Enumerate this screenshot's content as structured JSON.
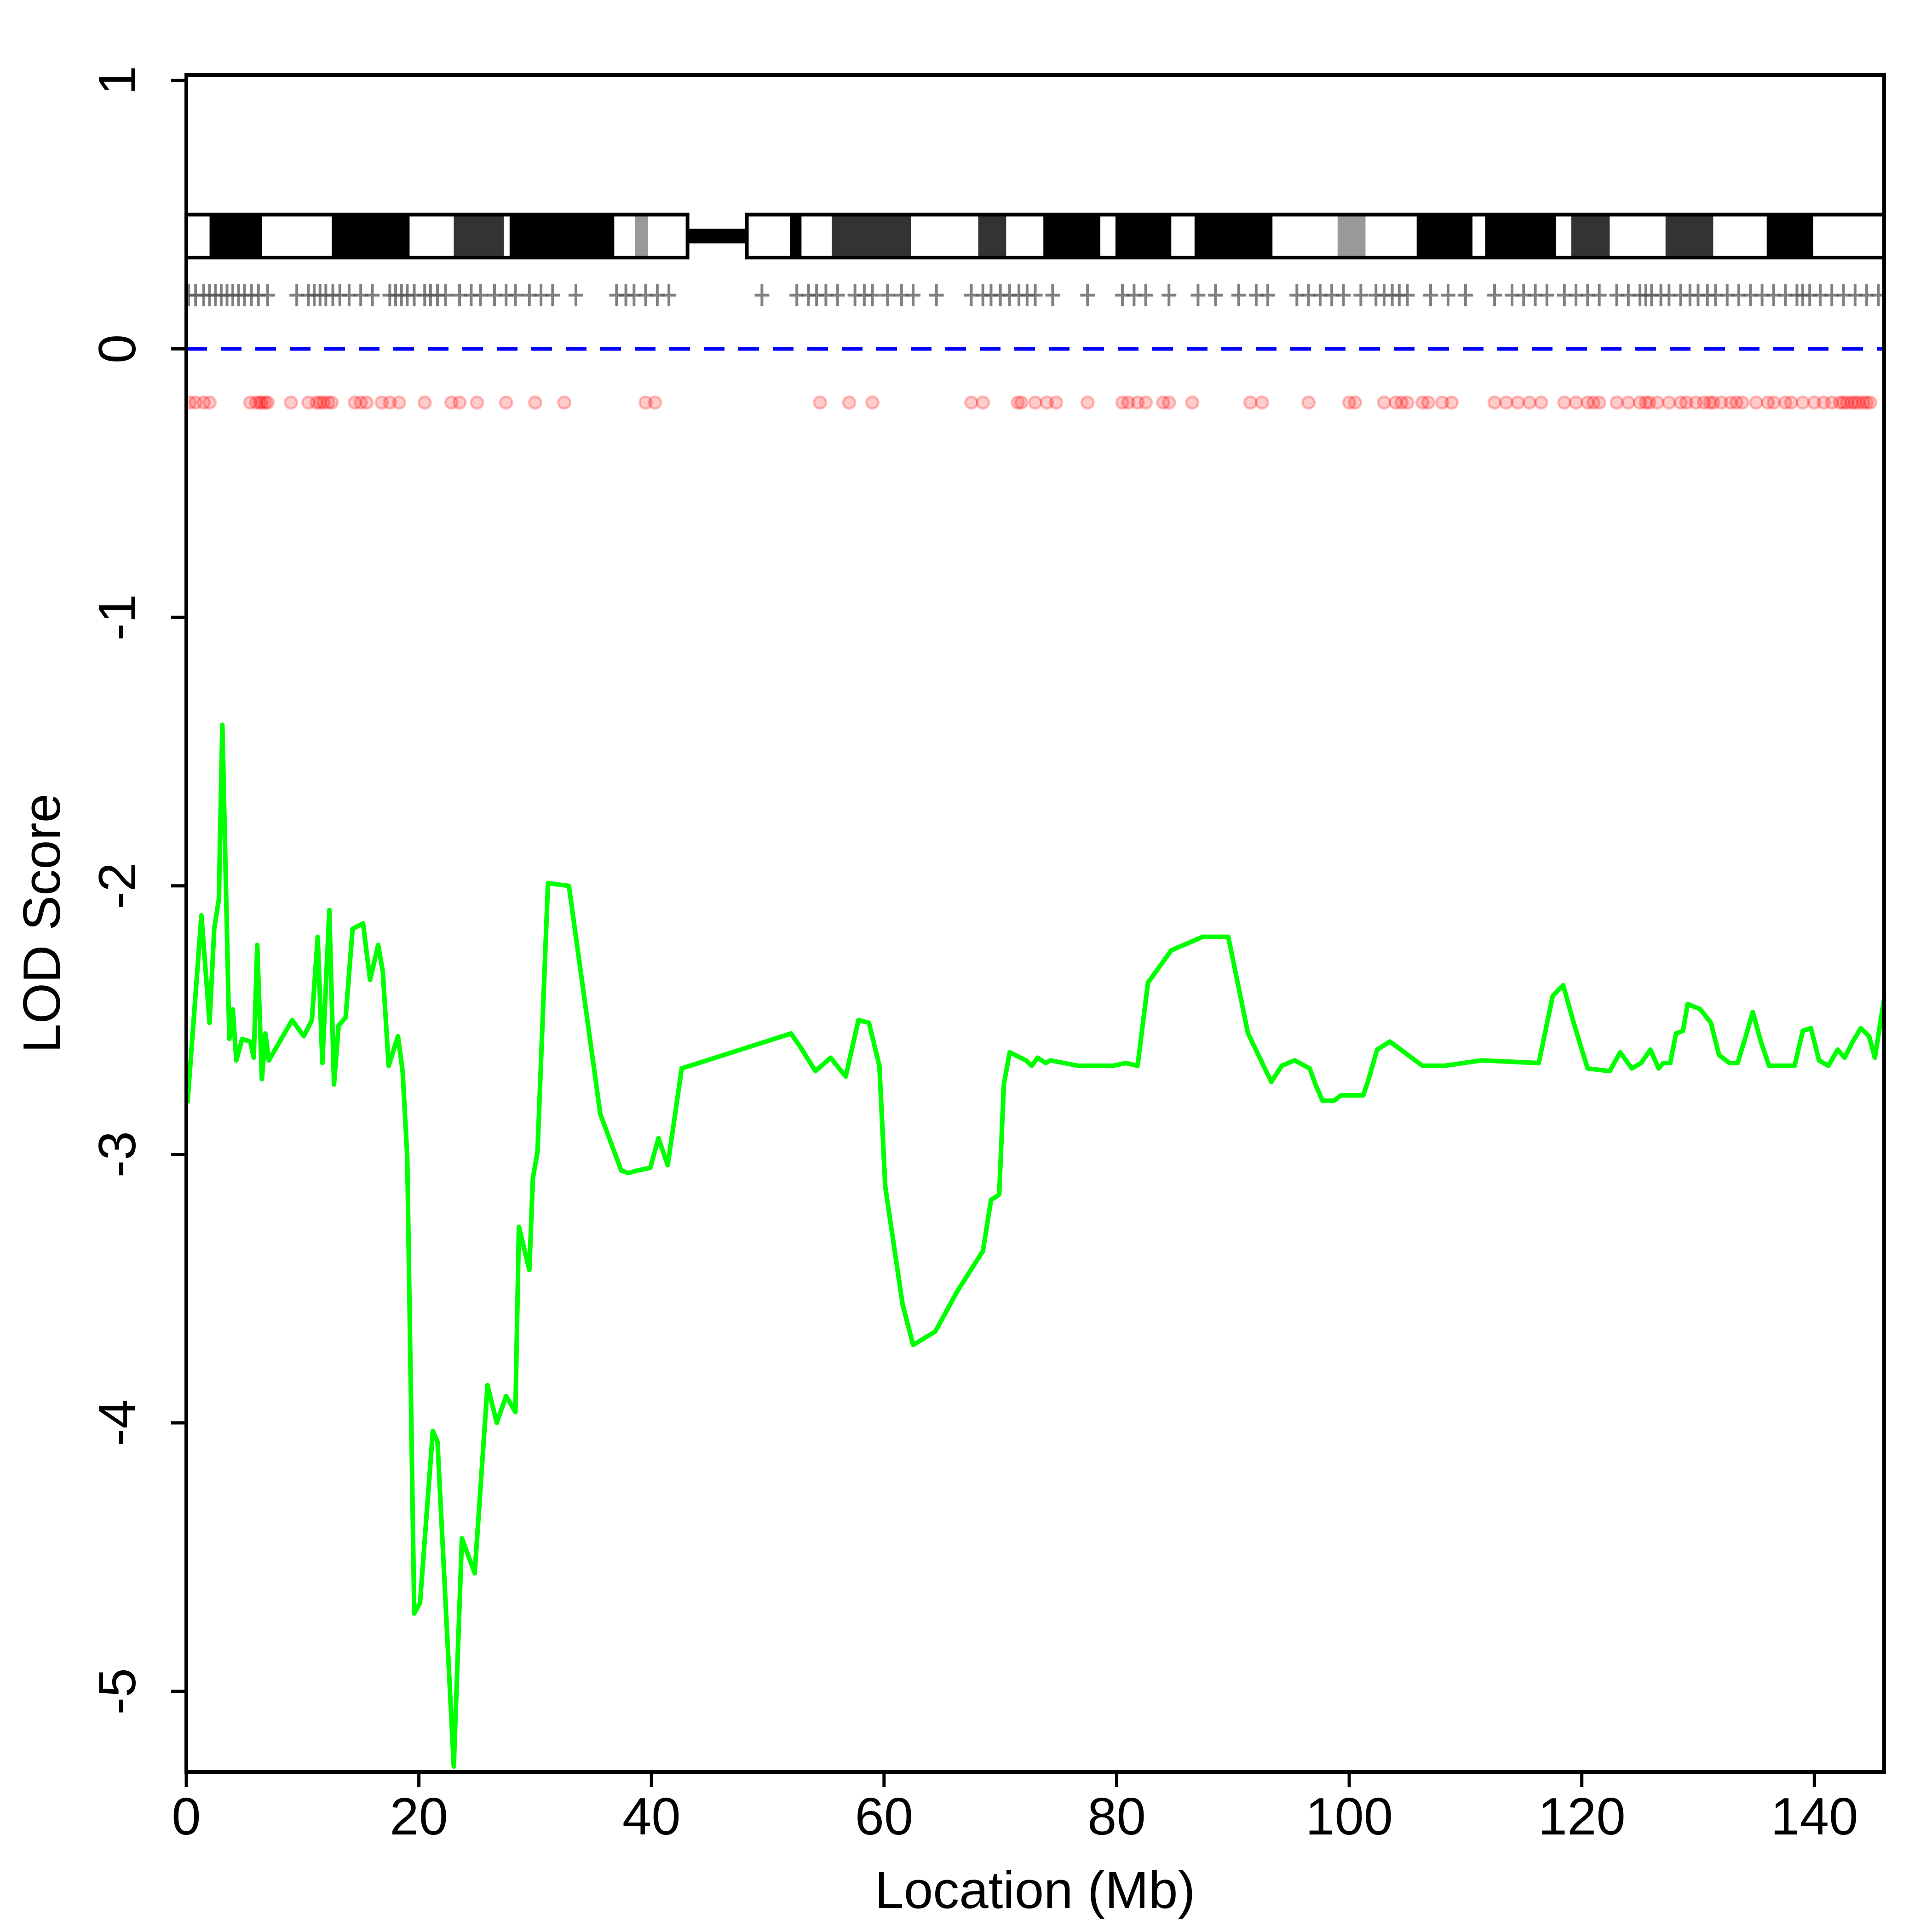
{
  "chart_data": {
    "type": "line",
    "x_label": "Location (Mb)",
    "y_label": "LOD Score",
    "xlim": [
      0,
      146
    ],
    "ylim": [
      -5.3,
      1.02
    ],
    "xticks": [
      0,
      20,
      40,
      60,
      80,
      100,
      120,
      140
    ],
    "yticks": [
      1,
      0,
      -1,
      -2,
      -3,
      -4,
      -5
    ],
    "color": "#00ff00",
    "x": [
      0.1,
      1.3,
      2.0,
      2.4,
      2.8,
      3.1,
      3.7,
      4.0,
      4.3,
      4.8,
      5.5,
      5.8,
      6.1,
      6.5,
      6.8,
      7.1,
      9.1,
      10.1,
      10.8,
      11.3,
      11.7,
      12.3,
      12.7,
      13.1,
      13.7,
      14.3,
      15.2,
      15.8,
      16.5,
      16.9,
      17.4,
      18.2,
      18.6,
      19.0,
      19.6,
      20.1,
      21.2,
      21.6,
      23.0,
      23.7,
      24.8,
      25.9,
      26.7,
      27.5,
      28.3,
      28.6,
      29.5,
      29.8,
      30.2,
      31.1,
      32.9,
      35.6,
      37.4,
      38.0,
      38.8,
      39.9,
      40.6,
      41.4,
      42.6,
      52.0,
      52.8,
      54.1,
      55.4,
      56.7,
      57.8,
      58.7,
      59.6,
      60.1,
      61.6,
      62.5,
      64.4,
      66.3,
      68.5,
      69.2,
      69.9,
      70.3,
      70.8,
      72.2,
      72.7,
      73.2,
      73.9,
      74.3,
      76.7,
      79.7,
      80.8,
      81.8,
      82.7,
      84.7,
      87.4,
      89.6,
      91.3,
      93.3,
      94.2,
      95.3,
      96.6,
      97.1,
      97.7,
      98.7,
      99.3,
      101.2,
      101.6,
      102.4,
      103.5,
      106.3,
      108.2,
      111.4,
      116.3,
      117.5,
      118.4,
      119.3,
      120.5,
      122.4,
      123.3,
      124.3,
      125.1,
      125.9,
      126.6,
      127.0,
      127.6,
      128.1,
      128.7,
      129.1,
      130.2,
      131.1,
      131.8,
      132.7,
      133.4,
      134.1,
      134.7,
      135.4,
      136.1,
      138.3,
      139.0,
      139.7,
      140.4,
      141.2,
      142.0,
      142.6,
      143.3,
      144.0,
      144.7,
      145.2,
      146.0
    ],
    "values": [
      -2.81,
      -2.11,
      -2.51,
      -2.16,
      -2.05,
      -1.4,
      -2.57,
      -2.46,
      -2.65,
      -2.57,
      -2.58,
      -2.64,
      -2.22,
      -2.72,
      -2.55,
      -2.65,
      -2.5,
      -2.56,
      -2.5,
      -2.19,
      -2.66,
      -2.09,
      -2.74,
      -2.52,
      -2.49,
      -2.16,
      -2.14,
      -2.35,
      -2.22,
      -2.32,
      -2.67,
      -2.56,
      -2.69,
      -3.01,
      -4.71,
      -4.67,
      -4.03,
      -4.07,
      -5.28,
      -4.43,
      -4.56,
      -3.86,
      -4.0,
      -3.9,
      -3.96,
      -3.27,
      -3.43,
      -3.09,
      -2.99,
      -1.99,
      -2.0,
      -2.85,
      -3.06,
      -3.07,
      -3.06,
      -3.05,
      -2.94,
      -3.04,
      -2.68,
      -2.55,
      -2.6,
      -2.69,
      -2.64,
      -2.71,
      -2.5,
      -2.51,
      -2.67,
      -3.12,
      -3.56,
      -3.71,
      -3.66,
      -3.51,
      -3.36,
      -3.17,
      -3.15,
      -2.74,
      -2.62,
      -2.65,
      -2.67,
      -2.64,
      -2.66,
      -2.65,
      -2.67,
      -2.67,
      -2.66,
      -2.67,
      -2.36,
      -2.24,
      -2.19,
      -2.19,
      -2.55,
      -2.73,
      -2.67,
      -2.65,
      -2.68,
      -2.74,
      -2.8,
      -2.8,
      -2.78,
      -2.78,
      -2.73,
      -2.61,
      -2.58,
      -2.67,
      -2.67,
      -2.65,
      -2.66,
      -2.41,
      -2.37,
      -2.51,
      -2.68,
      -2.69,
      -2.62,
      -2.68,
      -2.66,
      -2.61,
      -2.68,
      -2.66,
      -2.66,
      -2.55,
      -2.54,
      -2.44,
      -2.46,
      -2.51,
      -2.63,
      -2.66,
      -2.66,
      -2.56,
      -2.47,
      -2.58,
      -2.67,
      -2.67,
      -2.54,
      -2.53,
      -2.65,
      -2.67,
      -2.61,
      -2.64,
      -2.58,
      -2.53,
      -2.56,
      -2.64,
      -2.42
    ],
    "hline": {
      "value": 0,
      "color": "#0000ff"
    },
    "ideogram": {
      "top": 0.5,
      "bottom": 0.34,
      "arms": [
        [
          0,
          43.1
        ],
        [
          48.2,
          146
        ]
      ],
      "bands": [
        {
          "start": 2.0,
          "end": 6.5,
          "color": "#000000"
        },
        {
          "start": 12.5,
          "end": 19.2,
          "color": "#000000"
        },
        {
          "start": 23.0,
          "end": 27.3,
          "color": "#333333"
        },
        {
          "start": 27.8,
          "end": 36.8,
          "color": "#000000"
        },
        {
          "start": 38.6,
          "end": 39.7,
          "color": "#999999"
        },
        {
          "start": 51.9,
          "end": 52.9,
          "color": "#000000"
        },
        {
          "start": 55.5,
          "end": 62.3,
          "color": "#333333"
        },
        {
          "start": 68.1,
          "end": 70.5,
          "color": "#333333"
        },
        {
          "start": 73.7,
          "end": 78.6,
          "color": "#000000"
        },
        {
          "start": 79.9,
          "end": 84.7,
          "color": "#000000"
        },
        {
          "start": 86.7,
          "end": 93.4,
          "color": "#000000"
        },
        {
          "start": 99.0,
          "end": 101.4,
          "color": "#999999"
        },
        {
          "start": 105.8,
          "end": 110.6,
          "color": "#000000"
        },
        {
          "start": 111.7,
          "end": 117.8,
          "color": "#000000"
        },
        {
          "start": 119.1,
          "end": 122.4,
          "color": "#333333"
        },
        {
          "start": 127.2,
          "end": 131.3,
          "color": "#333333"
        },
        {
          "start": 135.9,
          "end": 139.9,
          "color": "#000000"
        }
      ]
    },
    "markers": {
      "y": 0.2,
      "color": "#555555",
      "x": [
        0.2,
        0.8,
        1.5,
        2.0,
        2.5,
        3.0,
        3.5,
        4.0,
        4.5,
        5.0,
        5.6,
        6.2,
        7.0,
        9.5,
        10.5,
        11.0,
        11.5,
        12.0,
        12.6,
        13.2,
        14.0,
        15.0,
        16.0,
        17.5,
        18.0,
        18.5,
        19.0,
        19.6,
        20.5,
        21.0,
        21.6,
        22.3,
        23.5,
        24.5,
        25.3,
        26.5,
        27.5,
        28.3,
        29.5,
        30.5,
        31.5,
        33.5,
        37.0,
        37.8,
        38.5,
        39.5,
        40.5,
        41.5,
        49.5,
        52.5,
        53.5,
        54.2,
        55.0,
        56.0,
        57.5,
        58.3,
        59.0,
        60.3,
        61.5,
        62.5,
        64.5,
        67.5,
        68.5,
        69.2,
        70.0,
        70.8,
        71.6,
        72.3,
        73.0,
        74.5,
        77.5,
        80.5,
        81.5,
        82.5,
        84.5,
        87.0,
        88.5,
        90.5,
        92.0,
        93.0,
        95.5,
        96.5,
        97.5,
        98.5,
        99.5,
        101.0,
        102.3,
        103.0,
        103.7,
        104.3,
        105.0,
        107.0,
        108.5,
        110.0,
        112.5,
        114.0,
        115.0,
        116.0,
        117.0,
        118.5,
        119.5,
        120.5,
        121.5,
        123.0,
        124.0,
        125.0,
        125.5,
        126.0,
        126.8,
        127.5,
        128.5,
        129.3,
        130.0,
        130.8,
        131.5,
        132.5,
        133.5,
        134.5,
        135.5,
        136.5,
        137.5,
        138.5,
        139.0,
        139.6,
        140.5,
        141.5,
        142.5,
        143.5,
        144.5,
        145.5
      ]
    },
    "snps": {
      "y": -0.2,
      "color": "#ff0000",
      "x": [
        0.3,
        0.8,
        1.5,
        2.0,
        5.5,
        6.0,
        6.3,
        6.5,
        6.8,
        7.0,
        9.0,
        10.5,
        11.2,
        11.5,
        11.8,
        12.2,
        12.5,
        14.5,
        15.0,
        15.5,
        16.8,
        17.5,
        18.3,
        20.5,
        22.8,
        23.5,
        25.0,
        27.5,
        30.0,
        32.5,
        39.5,
        40.3,
        54.5,
        57.0,
        59.0,
        67.5,
        68.5,
        71.5,
        71.8,
        73.0,
        74.0,
        74.8,
        77.5,
        80.5,
        81.0,
        81.8,
        82.5,
        84.0,
        84.5,
        86.5,
        91.5,
        92.5,
        96.5,
        100.0,
        100.5,
        103.0,
        104.0,
        104.5,
        105.0,
        106.3,
        106.8,
        108.0,
        108.8,
        112.5,
        113.5,
        114.5,
        115.5,
        116.5,
        118.5,
        119.5,
        120.5,
        121.0,
        121.5,
        123.0,
        124.0,
        125.0,
        125.5,
        125.8,
        126.5,
        127.5,
        128.5,
        129.0,
        129.8,
        130.5,
        131.0,
        131.3,
        132.0,
        132.8,
        133.3,
        133.8,
        135.0,
        136.0,
        136.5,
        137.5,
        138.0,
        139.0,
        140.0,
        140.8,
        141.5,
        142.2,
        142.5,
        142.8,
        143.2,
        143.5,
        143.8,
        144.2,
        144.5,
        144.8
      ]
    }
  }
}
